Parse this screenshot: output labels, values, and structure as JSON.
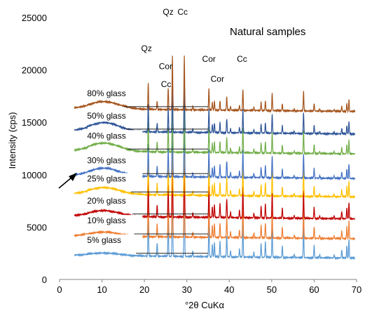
{
  "chart_data": {
    "type": "line",
    "title": "Natural samples",
    "xlabel": "°2θ CuKα",
    "ylabel": "Intensity (cps)",
    "xlim": [
      0,
      70
    ],
    "ylim": [
      0,
      25000
    ],
    "xticks": [
      0,
      10,
      20,
      30,
      40,
      50,
      60,
      70
    ],
    "yticks": [
      0,
      5000,
      10000,
      15000,
      20000,
      25000
    ],
    "grid": false,
    "series": [
      {
        "name": "5% glass",
        "color": "#5b9bd5",
        "baseline": 2300,
        "hump": 250
      },
      {
        "name": "10% glass",
        "color": "#ed7d31",
        "baseline": 4150,
        "hump": 400
      },
      {
        "name": "20% glass",
        "color": "#c00000",
        "baseline": 6050,
        "hump": 550
      },
      {
        "name": "25% glass",
        "color": "#ffc000",
        "baseline": 8150,
        "hump": 650
      },
      {
        "name": "30% glass",
        "color": "#4472c4",
        "baseline": 9900,
        "hump": 750
      },
      {
        "name": "40% glass",
        "color": "#70ad47",
        "baseline": 12250,
        "hump": 800
      },
      {
        "name": "50% glass",
        "color": "#2f5597",
        "baseline": 14150,
        "hump": 850
      },
      {
        "name": "80% glass",
        "color": "#a5541c",
        "baseline": 16300,
        "hump": 700
      }
    ],
    "peaks": [
      {
        "x": 20.9,
        "h": 4000
      },
      {
        "x": 23.0,
        "h": 1300
      },
      {
        "x": 25.6,
        "h": 3400
      },
      {
        "x": 26.6,
        "h": 8400
      },
      {
        "x": 29.4,
        "h": 8300
      },
      {
        "x": 31.4,
        "h": 500
      },
      {
        "x": 35.2,
        "h": 3400
      },
      {
        "x": 36.0,
        "h": 1200
      },
      {
        "x": 36.5,
        "h": 1400
      },
      {
        "x": 37.8,
        "h": 1500
      },
      {
        "x": 39.4,
        "h": 2000
      },
      {
        "x": 40.3,
        "h": 600
      },
      {
        "x": 42.4,
        "h": 800
      },
      {
        "x": 43.2,
        "h": 3300
      },
      {
        "x": 45.8,
        "h": 500
      },
      {
        "x": 47.5,
        "h": 1300
      },
      {
        "x": 48.5,
        "h": 1500
      },
      {
        "x": 50.1,
        "h": 2700
      },
      {
        "x": 52.5,
        "h": 1100
      },
      {
        "x": 55.3,
        "h": 300
      },
      {
        "x": 57.5,
        "h": 3000
      },
      {
        "x": 60.0,
        "h": 1200
      },
      {
        "x": 61.3,
        "h": 300
      },
      {
        "x": 64.7,
        "h": 300
      },
      {
        "x": 66.5,
        "h": 800
      },
      {
        "x": 67.7,
        "h": 1200
      },
      {
        "x": 68.2,
        "h": 1800
      }
    ],
    "annotations": [
      {
        "text": "Qz",
        "x": 20.5,
        "y": 21500
      },
      {
        "text": "Qz",
        "x": 25.6,
        "y": 25000
      },
      {
        "text": "Cc",
        "x": 29.0,
        "y": 25000
      },
      {
        "text": "Cor",
        "x": 25.0,
        "y": 19800
      },
      {
        "text": "Cc",
        "x": 25.1,
        "y": 18100
      },
      {
        "text": "Cor",
        "x": 35.2,
        "y": 20500
      },
      {
        "text": "Cor",
        "x": 37.2,
        "y": 18600
      },
      {
        "text": "Cc",
        "x": 43.0,
        "y": 20500
      }
    ]
  }
}
